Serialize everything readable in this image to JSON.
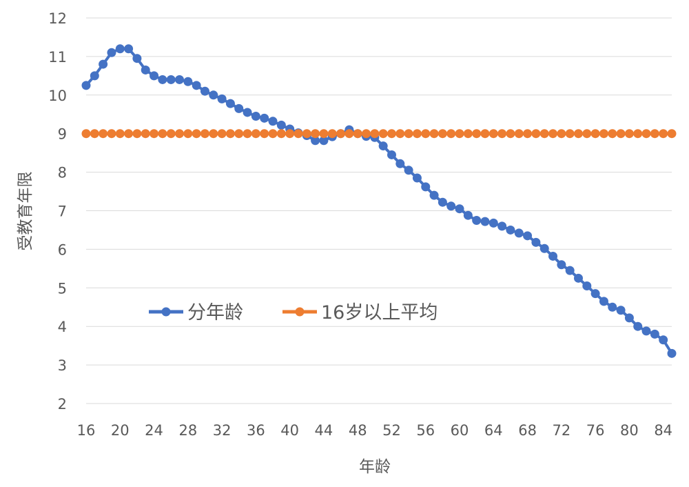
{
  "chart_data": {
    "type": "line",
    "title": "",
    "xlabel": "年龄",
    "ylabel": "受教育年限",
    "xlim": [
      16,
      85
    ],
    "ylim": [
      2,
      12
    ],
    "x_ticks": [
      16,
      20,
      24,
      28,
      32,
      36,
      40,
      44,
      48,
      52,
      56,
      60,
      64,
      68,
      72,
      76,
      80,
      84
    ],
    "y_ticks": [
      2,
      3,
      4,
      5,
      6,
      7,
      8,
      9,
      10,
      11,
      12
    ],
    "grid": "horizontal",
    "legend_position": "center-left",
    "x": [
      16,
      17,
      18,
      19,
      20,
      21,
      22,
      23,
      24,
      25,
      26,
      27,
      28,
      29,
      30,
      31,
      32,
      33,
      34,
      35,
      36,
      37,
      38,
      39,
      40,
      41,
      42,
      43,
      44,
      45,
      46,
      47,
      48,
      49,
      50,
      51,
      52,
      53,
      54,
      55,
      56,
      57,
      58,
      59,
      60,
      61,
      62,
      63,
      64,
      65,
      66,
      67,
      68,
      69,
      70,
      71,
      72,
      73,
      74,
      75,
      76,
      77,
      78,
      79,
      80,
      81,
      82,
      83,
      84,
      85
    ],
    "series": [
      {
        "name": "分年龄",
        "color": "#4472c4",
        "values": [
          10.25,
          10.5,
          10.8,
          11.1,
          11.2,
          11.2,
          10.95,
          10.65,
          10.5,
          10.4,
          10.4,
          10.4,
          10.35,
          10.25,
          10.1,
          10.0,
          9.9,
          9.78,
          9.65,
          9.55,
          9.45,
          9.4,
          9.32,
          9.22,
          9.12,
          9.02,
          8.95,
          8.82,
          8.82,
          8.92,
          9.0,
          9.1,
          9.0,
          8.93,
          8.9,
          8.68,
          8.45,
          8.22,
          8.05,
          7.85,
          7.62,
          7.4,
          7.22,
          7.12,
          7.05,
          6.88,
          6.75,
          6.72,
          6.68,
          6.6,
          6.5,
          6.42,
          6.35,
          6.18,
          6.02,
          5.82,
          5.6,
          5.45,
          5.25,
          5.05,
          4.85,
          4.65,
          4.5,
          4.42,
          4.22,
          4.0,
          3.88,
          3.8,
          3.65,
          3.3
        ]
      },
      {
        "name": "16岁以上平均",
        "color": "#ed7d31",
        "values": [
          9,
          9,
          9,
          9,
          9,
          9,
          9,
          9,
          9,
          9,
          9,
          9,
          9,
          9,
          9,
          9,
          9,
          9,
          9,
          9,
          9,
          9,
          9,
          9,
          9,
          9,
          9,
          9,
          9,
          9,
          9,
          9,
          9,
          9,
          9,
          9,
          9,
          9,
          9,
          9,
          9,
          9,
          9,
          9,
          9,
          9,
          9,
          9,
          9,
          9,
          9,
          9,
          9,
          9,
          9,
          9,
          9,
          9,
          9,
          9,
          9,
          9,
          9,
          9,
          9,
          9,
          9,
          9,
          9,
          9
        ]
      }
    ]
  }
}
